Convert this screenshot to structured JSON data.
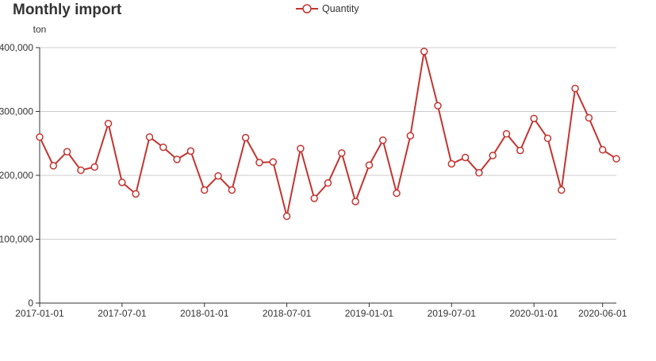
{
  "chart_data": {
    "type": "line",
    "title": "Monthly import",
    "xlabel": "",
    "ylabel": "",
    "y_unit": "ton",
    "legend": "top-center",
    "grid": true,
    "ylim": [
      0,
      400000
    ],
    "y_ticks": [
      0,
      100000,
      200000,
      300000,
      400000
    ],
    "y_tick_labels": [
      "0",
      "100,000",
      "200,000",
      "300,000",
      "400,000"
    ],
    "x_tick_labels": [
      "2017-01-01",
      "2017-07-01",
      "2018-01-01",
      "2018-07-01",
      "2019-01-01",
      "2019-07-01",
      "2020-01-01",
      "2020-06-01"
    ],
    "x_tick_indices": [
      0,
      6,
      12,
      18,
      24,
      30,
      36,
      41
    ],
    "color": "#c23531",
    "series": [
      {
        "name": "Quantity",
        "x": [
          "2017-01",
          "2017-02",
          "2017-03",
          "2017-04",
          "2017-05",
          "2017-06",
          "2017-07",
          "2017-08",
          "2017-09",
          "2017-10",
          "2017-11",
          "2017-12",
          "2018-01",
          "2018-02",
          "2018-03",
          "2018-04",
          "2018-05",
          "2018-06",
          "2018-07",
          "2018-08",
          "2018-09",
          "2018-10",
          "2018-11",
          "2018-12",
          "2019-01",
          "2019-02",
          "2019-03",
          "2019-04",
          "2019-05",
          "2019-06",
          "2019-07",
          "2019-08",
          "2019-09",
          "2019-10",
          "2019-11",
          "2019-12",
          "2020-01",
          "2020-02",
          "2020-03",
          "2020-04",
          "2020-05",
          "2020-06"
        ],
        "values": [
          260000,
          215000,
          237000,
          208000,
          213000,
          281000,
          189000,
          171000,
          260000,
          244000,
          225000,
          238000,
          177000,
          199000,
          177000,
          259000,
          220000,
          221000,
          136000,
          242000,
          164000,
          188000,
          235000,
          159000,
          216000,
          255000,
          172000,
          262000,
          394000,
          309000,
          218000,
          228000,
          204000,
          231000,
          265000,
          239000,
          289000,
          258000,
          177000,
          336000,
          290000,
          240000
        ]
      }
    ],
    "last_value_extra": 226000
  }
}
